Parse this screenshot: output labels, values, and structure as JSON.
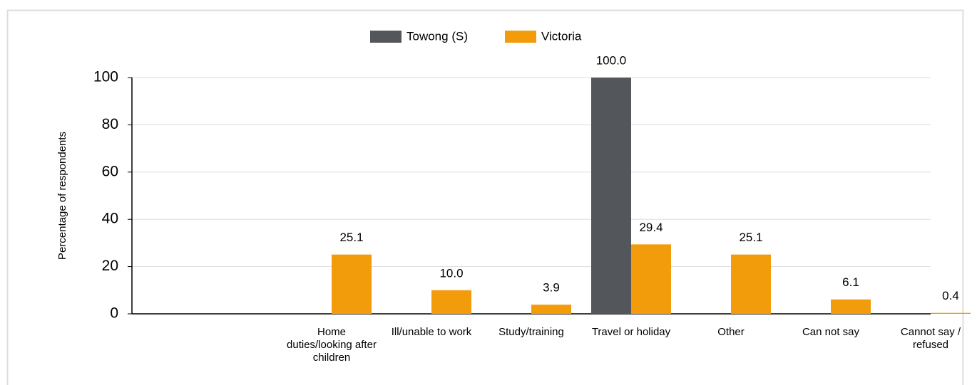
{
  "chart_data": {
    "type": "bar",
    "y_label": "Percentage of respondents",
    "categories": [
      null,
      "Home duties/looking after children",
      "Ill/unable to work",
      "Study/training",
      "Travel or holiday",
      "Other",
      "Can not say",
      "Cannot say / refused"
    ],
    "series": [
      {
        "name": "Towong (S)",
        "color": "#53565a",
        "values": [
          null,
          null,
          null,
          null,
          100.0,
          null,
          null,
          null
        ],
        "value_labels": [
          null,
          null,
          null,
          null,
          "100.0",
          null,
          null,
          null
        ]
      },
      {
        "name": "Victoria",
        "color": "#f39c0b",
        "values": [
          null,
          25.1,
          10.0,
          3.9,
          29.4,
          25.1,
          6.1,
          0.4
        ],
        "value_labels": [
          null,
          "25.1",
          "10.0",
          "3.9",
          "29.4",
          "25.1",
          "6.1",
          "0.4"
        ]
      }
    ],
    "ylim": [
      0,
      100
    ],
    "yticks": [
      0,
      20,
      40,
      60,
      80,
      100
    ],
    "grid": true,
    "legend": "top"
  }
}
